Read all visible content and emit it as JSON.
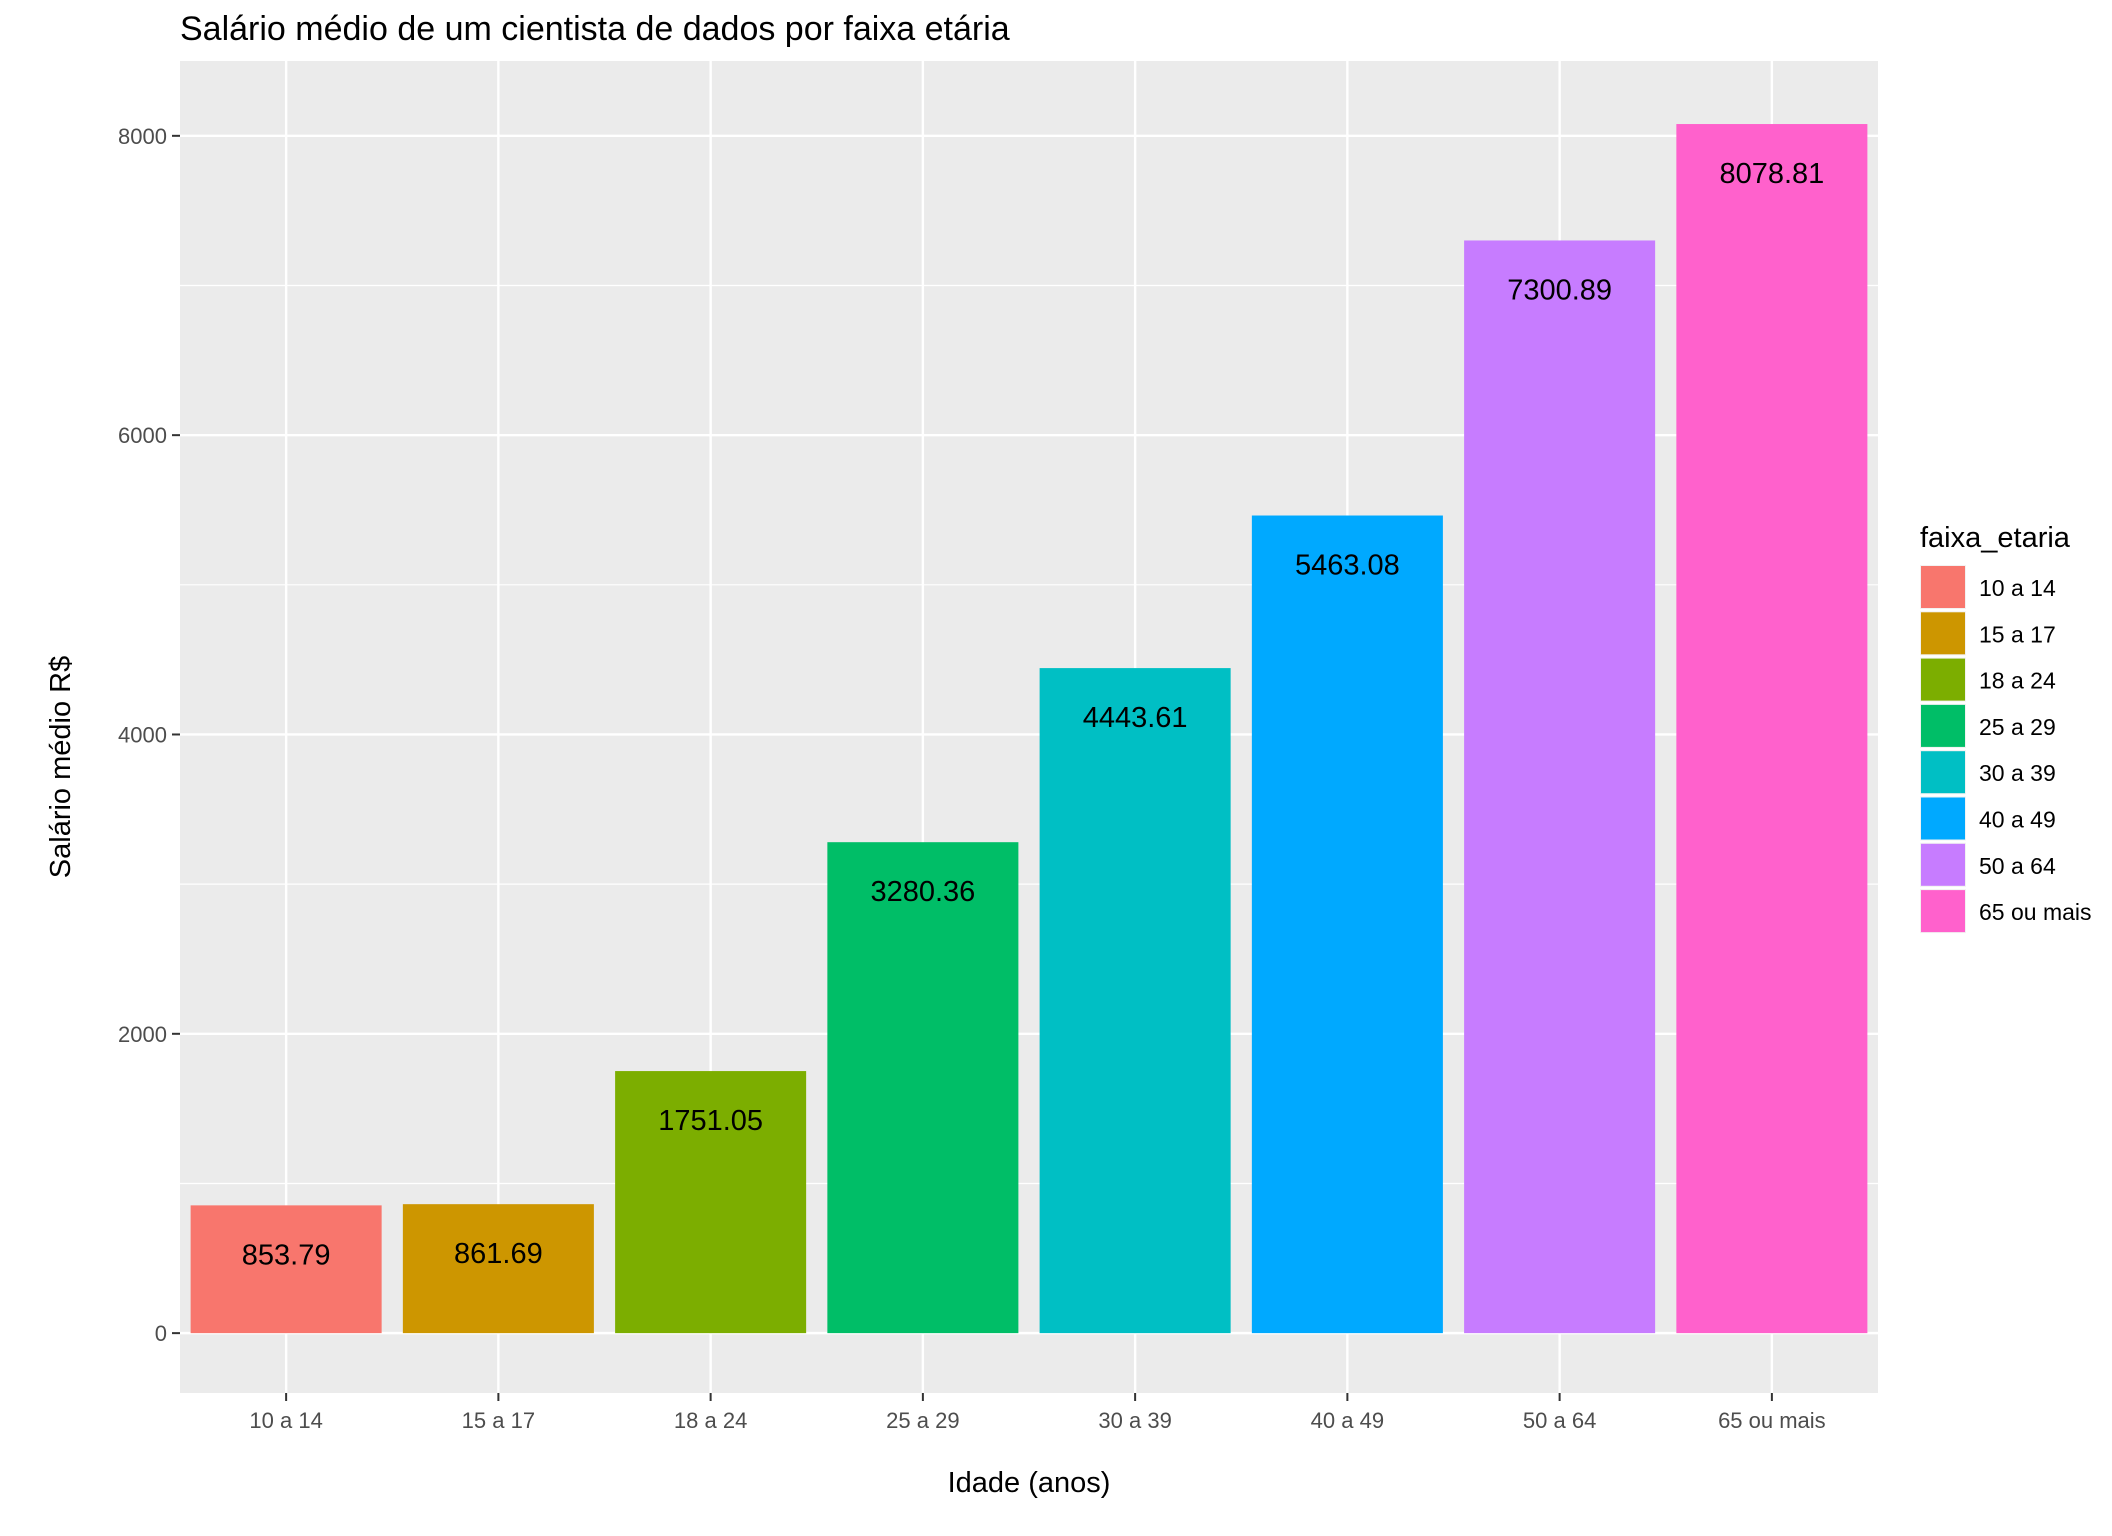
{
  "chart_data": {
    "type": "bar",
    "title": "Salário médio de um cientista de dados por faixa etária",
    "xlabel": "Idade (anos)",
    "ylabel": "Salário médio R$",
    "categories": [
      "10 a 14",
      "15 a 17",
      "18 a 24",
      "25 a 29",
      "30 a 39",
      "40 a 49",
      "50 a 64",
      "65 ou mais"
    ],
    "values": [
      853.79,
      861.69,
      1751.05,
      3280.36,
      4443.61,
      5463.08,
      7300.89,
      8078.81
    ],
    "data_labels": [
      "853.79",
      "861.69",
      "1751.05",
      "3280.36",
      "4443.61",
      "5463.08",
      "7300.89",
      "8078.81"
    ],
    "colors": [
      "#F8766D",
      "#CD9600",
      "#7CAE00",
      "#00BE67",
      "#00BFC4",
      "#00A9FF",
      "#C77CFF",
      "#FF61CC"
    ],
    "ylim": [
      -400,
      8500
    ],
    "yticks": [
      0,
      2000,
      4000,
      6000,
      8000
    ],
    "ytick_labels": [
      "0",
      "2000",
      "4000",
      "6000",
      "8000"
    ],
    "grid": true,
    "panel_background": "#EBEBEB",
    "grid_color": "#FFFFFF",
    "legend": {
      "title": "faixa_etaria",
      "position": "right",
      "entries": [
        "10 a 14",
        "15 a 17",
        "18 a 24",
        "25 a 29",
        "30 a 39",
        "40 a 49",
        "50 a 64",
        "65 ou mais"
      ]
    }
  }
}
